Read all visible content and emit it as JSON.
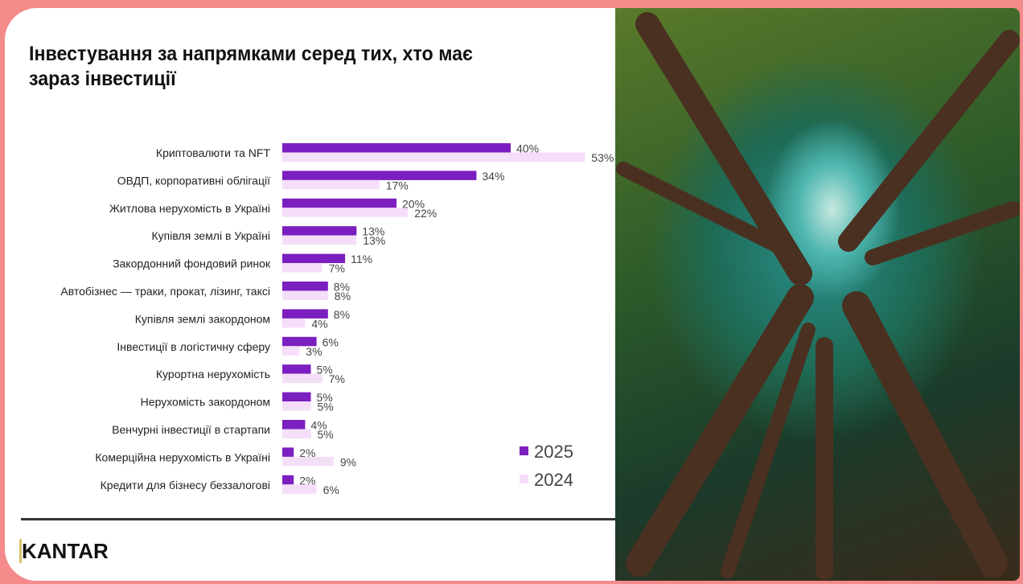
{
  "title": "Інвестування за напрямками серед тих, хто має зараз інвестиції",
  "logo": "KANTAR",
  "chart_data": {
    "type": "bar",
    "orientation": "horizontal",
    "title": "Інвестування за напрямками серед тих, хто має зараз інвестиції",
    "xlabel": "",
    "ylabel": "",
    "xlim": [
      0,
      55
    ],
    "grid": false,
    "legend_position": "bottom-right",
    "categories": [
      "Криптовалюти та NFT",
      "ОВДП, корпоративні облігації",
      "Житлова нерухомість в Україні",
      "Купівля землі в Україні",
      "Закордонний фондовий ринок",
      "Автобізнес — траки, прокат, лізинг, таксі",
      "Купівля землі закордоном",
      "Інвестиції в логістичну сферу",
      "Курортна нерухомість",
      "Нерухомість закордоном",
      "Венчурні інвестиції в стартапи",
      "Комерційна нерухомість в Україні",
      "Кредити для бізнесу беззалогові"
    ],
    "series": [
      {
        "name": "2025",
        "color": "#7b1fc0",
        "values": [
          40,
          34,
          20,
          13,
          11,
          8,
          8,
          6,
          5,
          5,
          4,
          2,
          2
        ]
      },
      {
        "name": "2024",
        "color": "#f4def8",
        "values": [
          53,
          17,
          22,
          13,
          7,
          8,
          4,
          3,
          7,
          5,
          5,
          9,
          6
        ]
      }
    ]
  }
}
